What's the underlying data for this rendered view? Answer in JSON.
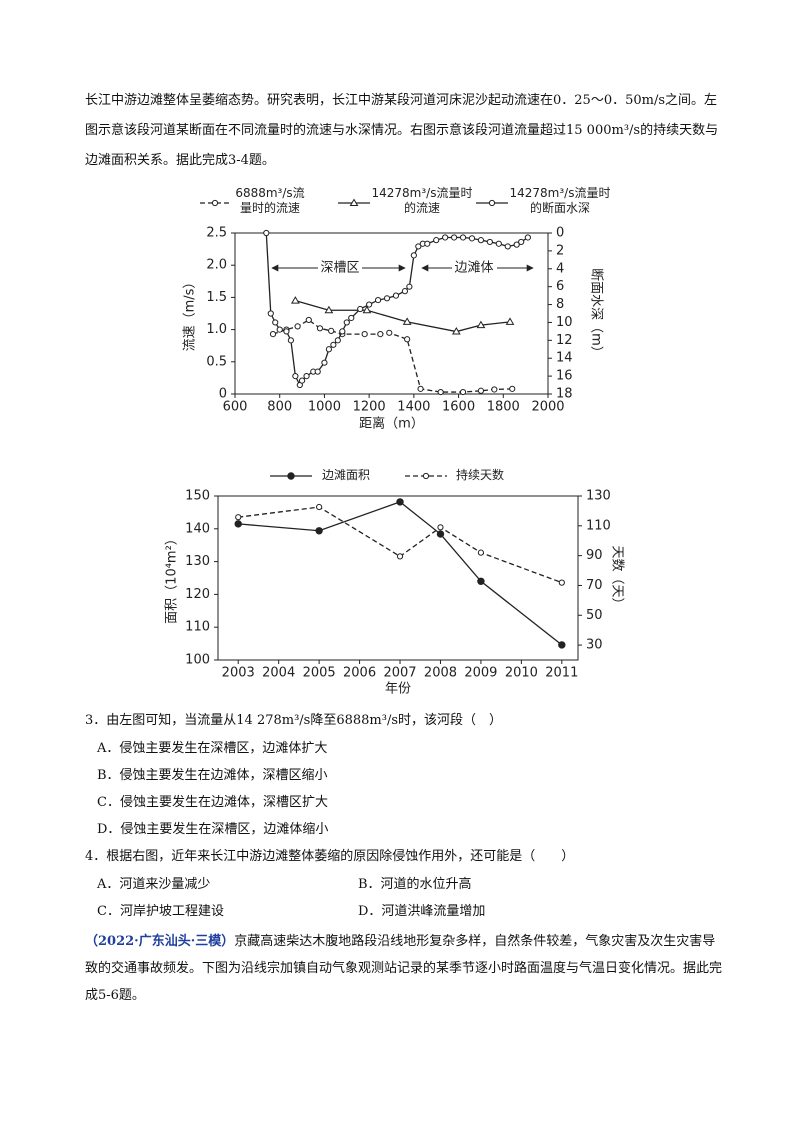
{
  "intro": "长江中游边滩整体呈萎缩态势。研究表明，长江中游某段河道河床泥沙起动流速在0．25～0．50m/s之间。左图示意该段河道某断面在不同流量时的流速与水深情况。右图示意该段河道流量超过15 000m³/s的持续天数与边滩面积关系。据此完成3-4题。",
  "chart_data": [
    {
      "type": "line",
      "xlabel": "距离（m）",
      "ylabel": "流速（m/s）",
      "y2label": "断面水深（m）",
      "xlim": [
        600,
        2000
      ],
      "xticks": [
        600,
        800,
        1000,
        1200,
        1400,
        1600,
        1800,
        2000
      ],
      "ylim": [
        0,
        2.5
      ],
      "yticks": [
        0,
        0.5,
        {
          "value": 1,
          "label": "1.0"
        },
        1.5,
        {
          "value": 2,
          "label": "2.0"
        },
        2.5
      ],
      "y2lim": [
        18,
        0
      ],
      "y2ticks": [
        0,
        2,
        4,
        6,
        8,
        10,
        12,
        14,
        16,
        18
      ],
      "annotations": [
        "深槽区",
        "边滩体"
      ],
      "series": [
        {
          "name": "6888m³/s流量时的流速",
          "color": "#222222",
          "line_style": "dashed",
          "marker": "open-circle",
          "x": [
            770,
            830,
            880,
            930,
            980,
            1030,
            1080,
            1180,
            1250,
            1290,
            1370,
            1430,
            1520,
            1620,
            1700,
            1760,
            1840
          ],
          "values": [
            0.93,
            1.0,
            1.05,
            1.15,
            1.02,
            0.98,
            0.93,
            0.93,
            0.93,
            0.95,
            0.85,
            0.08,
            0.03,
            0.03,
            0.05,
            0.07,
            0.08
          ]
        },
        {
          "name": "14278m³/s流量时的流速",
          "color": "#222222",
          "line_style": "solid",
          "marker": "open-triangle",
          "x": [
            870,
            1020,
            1190,
            1370,
            1590,
            1700,
            1830
          ],
          "values": [
            1.45,
            1.3,
            1.3,
            1.12,
            0.97,
            1.07,
            1.12
          ]
        },
        {
          "name": "14278m³/s流量时的断面水深",
          "color": "#222222",
          "line_style": "solid",
          "marker": "open-circle",
          "axis": "y2",
          "x": [
            740,
            760,
            780,
            800,
            830,
            850,
            870,
            890,
            900,
            920,
            950,
            970,
            1000,
            1020,
            1040,
            1060,
            1080,
            1100,
            1120,
            1160,
            1200,
            1240,
            1280,
            1320,
            1360,
            1380,
            1400,
            1420,
            1440,
            1460,
            1500,
            1540,
            1580,
            1620,
            1660,
            1700,
            1740,
            1780,
            1820,
            1860,
            1880,
            1910
          ],
          "values": [
            0,
            9,
            10,
            10.8,
            11,
            12,
            16,
            17,
            16.5,
            16,
            15.5,
            15.5,
            14.5,
            13,
            12.5,
            12,
            11,
            10,
            9.5,
            8.5,
            8,
            7.5,
            7.3,
            7,
            6.5,
            6,
            2.5,
            1.5,
            1.2,
            1.2,
            0.8,
            0.5,
            0.5,
            0.5,
            0.6,
            0.8,
            1,
            1.2,
            1.5,
            1.3,
            1,
            0.5
          ]
        }
      ]
    },
    {
      "type": "line",
      "xlabel": "年份",
      "ylabel": "面积（10⁴m²）",
      "y2label": "天数（天）",
      "xlim": [
        2002.5,
        2011.4
      ],
      "xticks": [
        2003,
        2004,
        2005,
        2006,
        2007,
        2008,
        2009,
        2010,
        2011
      ],
      "ylim": [
        100,
        150
      ],
      "yticks": [
        100,
        110,
        120,
        130,
        140,
        150
      ],
      "y2lim": [
        20,
        130
      ],
      "y2ticks": [
        30,
        50,
        70,
        90,
        110,
        130
      ],
      "series": [
        {
          "name": "边滩面积",
          "color": "#222222",
          "line_style": "solid",
          "marker": "filled-circle",
          "x": [
            2003,
            2005,
            2007,
            2008,
            2009,
            2011
          ],
          "values": [
            141.5,
            139.4,
            148.2,
            138.4,
            124,
            104.6
          ]
        },
        {
          "name": "持续天数",
          "color": "#222222",
          "line_style": "dashed",
          "marker": "open-circle",
          "axis": "y2",
          "x": [
            2003,
            2005,
            2007,
            2008,
            2009,
            2011
          ],
          "values": [
            115.8,
            122.6,
            89.5,
            109,
            92,
            71.9
          ]
        }
      ]
    }
  ],
  "questions": [
    {
      "stem": "3．由左图可知，当流量从14 278m³/s降至6888m³/s时，该河段（　）",
      "options": [
        "A．侵蚀主要发生在深槽区，边滩体扩大",
        "B．侵蚀主要发生在边滩体，深槽区缩小",
        "C．侵蚀主要发生在边滩体，深槽区扩大",
        "D．侵蚀主要发生在深槽区，边滩体缩小"
      ]
    },
    {
      "stem": "4．根据右图，近年来长江中游边滩整体萎缩的原因除侵蚀作用外，还可能是（　　）",
      "options": [
        "A．河道来沙量减少",
        "B．河道的水位升高",
        "C．河岸护坡工程建设",
        "D．河道洪峰流量增加"
      ]
    }
  ],
  "passage": {
    "source": "（2022·广东汕头·三模）",
    "text": "京藏高速柴达木腹地路段沿线地形复杂多样，自然条件较差，气象灾害及次生灾害导致的交通事故频发。下图为沿线宗加镇自动气象观测站记录的某季节逐小时路面温度与气温日变化情况。据此完成5-6题。"
  }
}
